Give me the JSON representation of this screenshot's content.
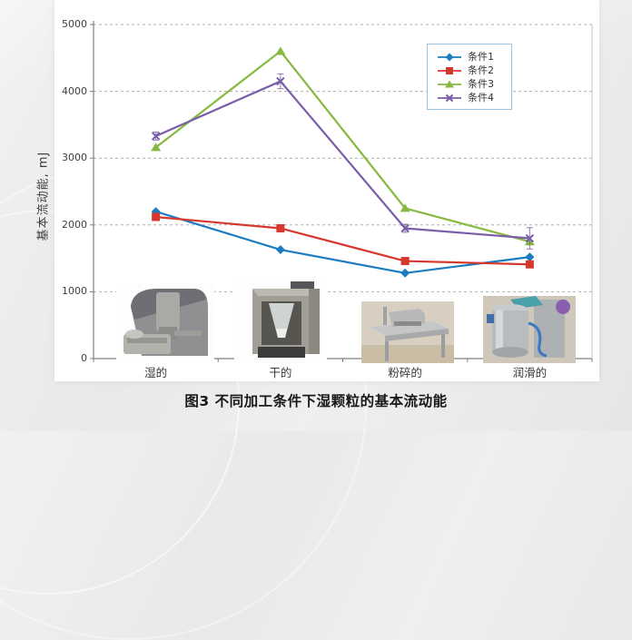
{
  "page": {
    "caption": "图3 不同加工条件下湿颗粒的基本流动能"
  },
  "colors": {
    "grid": "#ADADAD",
    "axis": "#7F7F7F",
    "legend_border": "#9CC3E0",
    "panel_background": "#FFFFFF",
    "page_background": "#EBEBEB"
  },
  "chart_data": {
    "type": "line",
    "title": "",
    "xlabel": "",
    "ylabel": "基本流动能, mJ",
    "ylim": [
      0,
      5000
    ],
    "ytick_interval": 1000,
    "yticks": [
      5000,
      4000,
      3000,
      2000,
      1000,
      0
    ],
    "grid": "horizontal-dashed",
    "legend_position": "top-right-inside",
    "categories": [
      "湿的",
      "干的",
      "粉碎的",
      "润滑的"
    ],
    "series": [
      {
        "name": "条件1",
        "color": "#1B7CC0",
        "marker": "diamond",
        "values": [
          2200,
          1630,
          1280,
          1520
        ]
      },
      {
        "name": "条件2",
        "color": "#D6382E",
        "marker": "square",
        "values": [
          2120,
          1950,
          1460,
          1410
        ]
      },
      {
        "name": "条件3",
        "color": "#86B93F",
        "marker": "triangle",
        "values": [
          3160,
          4600,
          2250,
          1750
        ]
      },
      {
        "name": "条件4",
        "color": "#7A5DA8",
        "marker": "x",
        "values": [
          3330,
          4150,
          1950,
          1800
        ],
        "error_bars": [
          60,
          110,
          60,
          160
        ]
      }
    ],
    "photos": [
      {
        "name": "high-shear-granulator-photo",
        "category": "湿的"
      },
      {
        "name": "fluid-bed-dryer-photo",
        "category": "干的"
      },
      {
        "name": "conical-mill-table-photo",
        "category": "粉碎的"
      },
      {
        "name": "steel-blender-photo",
        "category": "润滑的"
      }
    ]
  }
}
